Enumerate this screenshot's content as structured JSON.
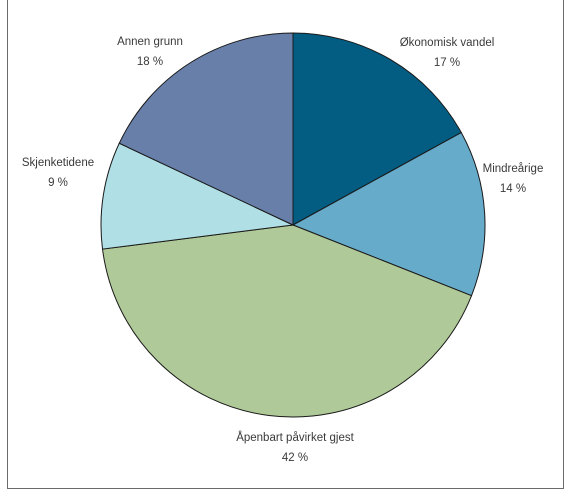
{
  "chart_data": {
    "type": "pie",
    "title": "",
    "slices": [
      {
        "label": "Økonomisk vandel",
        "value": 17,
        "value_text": "17 %",
        "color": "#035c82"
      },
      {
        "label": "Mindreårige",
        "value": 14,
        "value_text": "14 %",
        "color": "#67abcb"
      },
      {
        "label": "Åpenbart påvirket gjest",
        "value": 42,
        "value_text": "42 %",
        "color": "#afca98"
      },
      {
        "label": "Skjenketidene",
        "value": 9,
        "value_text": "9 %",
        "color": "#b0dfe6"
      },
      {
        "label": "Annen grunn",
        "value": 18,
        "value_text": "18 %",
        "color": "#677fa9"
      }
    ],
    "legend": "none",
    "grid": false
  }
}
